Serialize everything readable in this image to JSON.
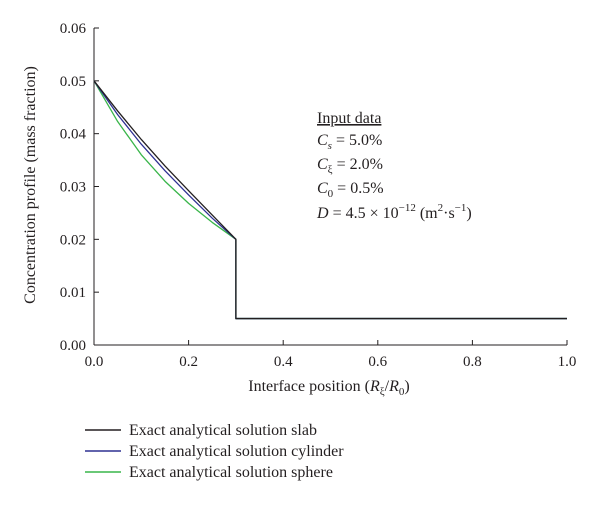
{
  "chart_data": {
    "type": "line",
    "xlabel": "Interface position (Rξ/R0)",
    "ylabel": "Concentration profile (mass fraction)",
    "xlim": [
      0,
      1.0
    ],
    "ylim": [
      0,
      0.06
    ],
    "xticks": [
      "0.0",
      "0.2",
      "0.4",
      "0.6",
      "0.8",
      "1.0"
    ],
    "yticks": [
      "0.00",
      "0.01",
      "0.02",
      "0.03",
      "0.04",
      "0.05",
      "0.06"
    ],
    "grid": false,
    "legend_position": "bottom-left",
    "annotation": {
      "heading": "Input data",
      "lines": [
        "Cs = 5.0%",
        "Cξ = 2.0%",
        "C0 = 0.5%",
        "D = 4.5 × 10^-12 (m2·s-1)"
      ]
    },
    "series": [
      {
        "name": "Exact analytical solution slab",
        "color": "#231f20",
        "x": [
          0,
          0.05,
          0.1,
          0.15,
          0.2,
          0.25,
          0.3,
          0.3,
          1.0
        ],
        "y": [
          0.05,
          0.0443,
          0.0389,
          0.0339,
          0.0292,
          0.0246,
          0.02,
          0.005,
          0.005
        ]
      },
      {
        "name": "Exact analytical solution cylinder",
        "color": "#2e3192",
        "x": [
          0,
          0.05,
          0.1,
          0.15,
          0.2,
          0.25,
          0.3,
          0.3,
          1.0
        ],
        "y": [
          0.05,
          0.0436,
          0.038,
          0.033,
          0.0284,
          0.024,
          0.02,
          0.005,
          0.005
        ]
      },
      {
        "name": "Exact analytical solution sphere",
        "color": "#39b54a",
        "x": [
          0,
          0.05,
          0.1,
          0.15,
          0.2,
          0.25,
          0.3,
          0.3,
          1.0
        ],
        "y": [
          0.05,
          0.0423,
          0.036,
          0.031,
          0.0268,
          0.0232,
          0.02,
          0.005,
          0.005
        ]
      }
    ]
  }
}
